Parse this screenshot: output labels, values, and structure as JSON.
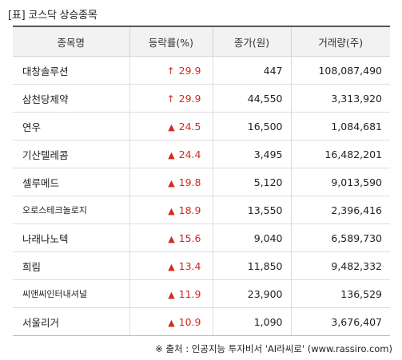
{
  "title": "[표] 코스닥 상승종목",
  "headers": {
    "name": "종목명",
    "rate": "등락률(%)",
    "price": "종가(원)",
    "volume": "거래량(주)"
  },
  "rows": [
    {
      "name": "대창솔루션",
      "arrow": "↑",
      "rate": "29.9",
      "price": "447",
      "volume": "108,087,490"
    },
    {
      "name": "삼천당제약",
      "arrow": "↑",
      "rate": "29.9",
      "price": "44,550",
      "volume": "3,313,920"
    },
    {
      "name": "연우",
      "arrow": "▲",
      "rate": "24.5",
      "price": "16,500",
      "volume": "1,084,681"
    },
    {
      "name": "기산텔레콤",
      "arrow": "▲",
      "rate": "24.4",
      "price": "3,495",
      "volume": "16,482,201"
    },
    {
      "name": "셀루메드",
      "arrow": "▲",
      "rate": "19.8",
      "price": "5,120",
      "volume": "9,013,590"
    },
    {
      "name": "오로스테크놀로지",
      "arrow": "▲",
      "rate": "18.9",
      "price": "13,550",
      "volume": "2,396,416"
    },
    {
      "name": "나래나노텍",
      "arrow": "▲",
      "rate": "15.6",
      "price": "9,040",
      "volume": "6,589,730"
    },
    {
      "name": "희림",
      "arrow": "▲",
      "rate": "13.4",
      "price": "11,850",
      "volume": "9,482,332"
    },
    {
      "name": "씨앤씨인터내셔널",
      "arrow": "▲",
      "rate": "11.9",
      "price": "23,900",
      "volume": "136,529"
    },
    {
      "name": "서울리거",
      "arrow": "▲",
      "rate": "10.9",
      "price": "1,090",
      "volume": "3,676,407"
    }
  ],
  "source": "※ 출처 : 인공지능 투자비서 'AI라씨로' (www.rassiro.com)",
  "colors": {
    "up": "#d12a20",
    "header_bg": "#f2f2f2"
  }
}
